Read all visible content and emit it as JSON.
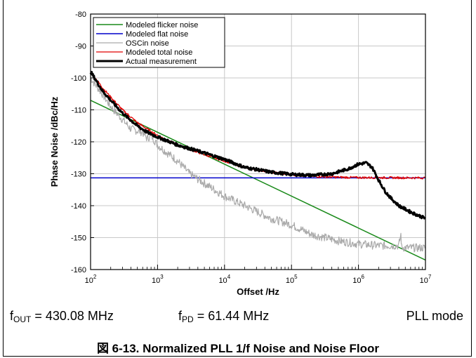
{
  "chart_data": {
    "type": "line",
    "title": "",
    "xlabel": "Offset /Hz",
    "ylabel": "Phase Noise /dBc/Hz",
    "x_scale": "log",
    "xlim": [
      100,
      10000000
    ],
    "ylim": [
      -160,
      -80
    ],
    "x_ticks": [
      {
        "base": "10",
        "exp": "2"
      },
      {
        "base": "10",
        "exp": "3"
      },
      {
        "base": "10",
        "exp": "4"
      },
      {
        "base": "10",
        "exp": "5"
      },
      {
        "base": "10",
        "exp": "6"
      },
      {
        "base": "10",
        "exp": "7"
      }
    ],
    "y_ticks": [
      "-80",
      "-90",
      "-100",
      "-110",
      "-120",
      "-130",
      "-140",
      "-150",
      "-160"
    ],
    "grid": true,
    "legend_position": "top-left",
    "series": [
      {
        "name": "Modeled flicker noise",
        "color": "#1a8a1a",
        "width": 1.5,
        "x": [
          100,
          10000000
        ],
        "y": [
          -107,
          -157
        ]
      },
      {
        "name": "Modeled flat noise",
        "color": "#0000cc",
        "width": 1.5,
        "x": [
          100,
          10000000
        ],
        "y": [
          -131.3,
          -131.3
        ]
      },
      {
        "name": "OSCin noise",
        "color": "#aaaaaa",
        "width": 1.2,
        "x": [
          100,
          150,
          200,
          300,
          400,
          600,
          700,
          800,
          1000,
          1500,
          2000,
          3000,
          5000,
          10000,
          20000,
          50000,
          100000,
          200000,
          500000,
          1000000,
          2000000,
          4000000,
          4300000,
          4400000,
          5000000,
          10000000
        ],
        "y": [
          -100,
          -105,
          -109,
          -113,
          -116,
          -117,
          -119,
          -118,
          -121,
          -124,
          -126,
          -130,
          -133,
          -137,
          -140,
          -144,
          -146,
          -149,
          -151,
          -152,
          -152.5,
          -152.5,
          -149,
          -153,
          -153.2,
          -153.2
        ]
      },
      {
        "name": "Modeled total noise",
        "color": "#e00000",
        "width": 1.3,
        "x": [
          100,
          150,
          200,
          300,
          500,
          700,
          1000,
          2000,
          5000,
          10000,
          20000,
          50000,
          100000,
          200000,
          500000,
          1000000,
          10000000
        ],
        "y": [
          -98,
          -103,
          -106,
          -110,
          -114,
          -116,
          -118,
          -121,
          -124,
          -126,
          -128,
          -129.5,
          -130.3,
          -130.8,
          -131.1,
          -131.2,
          -131.3
        ]
      },
      {
        "name": "Actual measurement",
        "color": "#000000",
        "width": 3,
        "x": [
          100,
          150,
          200,
          300,
          500,
          700,
          1000,
          2000,
          5000,
          10000,
          20000,
          50000,
          100000,
          200000,
          400000,
          700000,
          1000000,
          1300000,
          1600000,
          2000000,
          2500000,
          3000000,
          4000000,
          6000000,
          10000000
        ],
        "y": [
          -98,
          -104,
          -107,
          -111,
          -115,
          -117,
          -118.5,
          -121,
          -123.5,
          -125.5,
          -128,
          -129.5,
          -130.2,
          -130.5,
          -130,
          -128.5,
          -127,
          -126.6,
          -128,
          -132,
          -135.5,
          -137.5,
          -140,
          -142,
          -144
        ]
      }
    ]
  },
  "info": {
    "fout_prefix": "f",
    "fout_sub": "OUT",
    "fout_value": " = 430.08 MHz",
    "fpd_prefix": "f",
    "fpd_sub": "PD",
    "fpd_value": " = 61.44 MHz",
    "mode": "PLL mode"
  },
  "caption": "図 6-13. Normalized PLL 1/f Noise and Noise Floor"
}
